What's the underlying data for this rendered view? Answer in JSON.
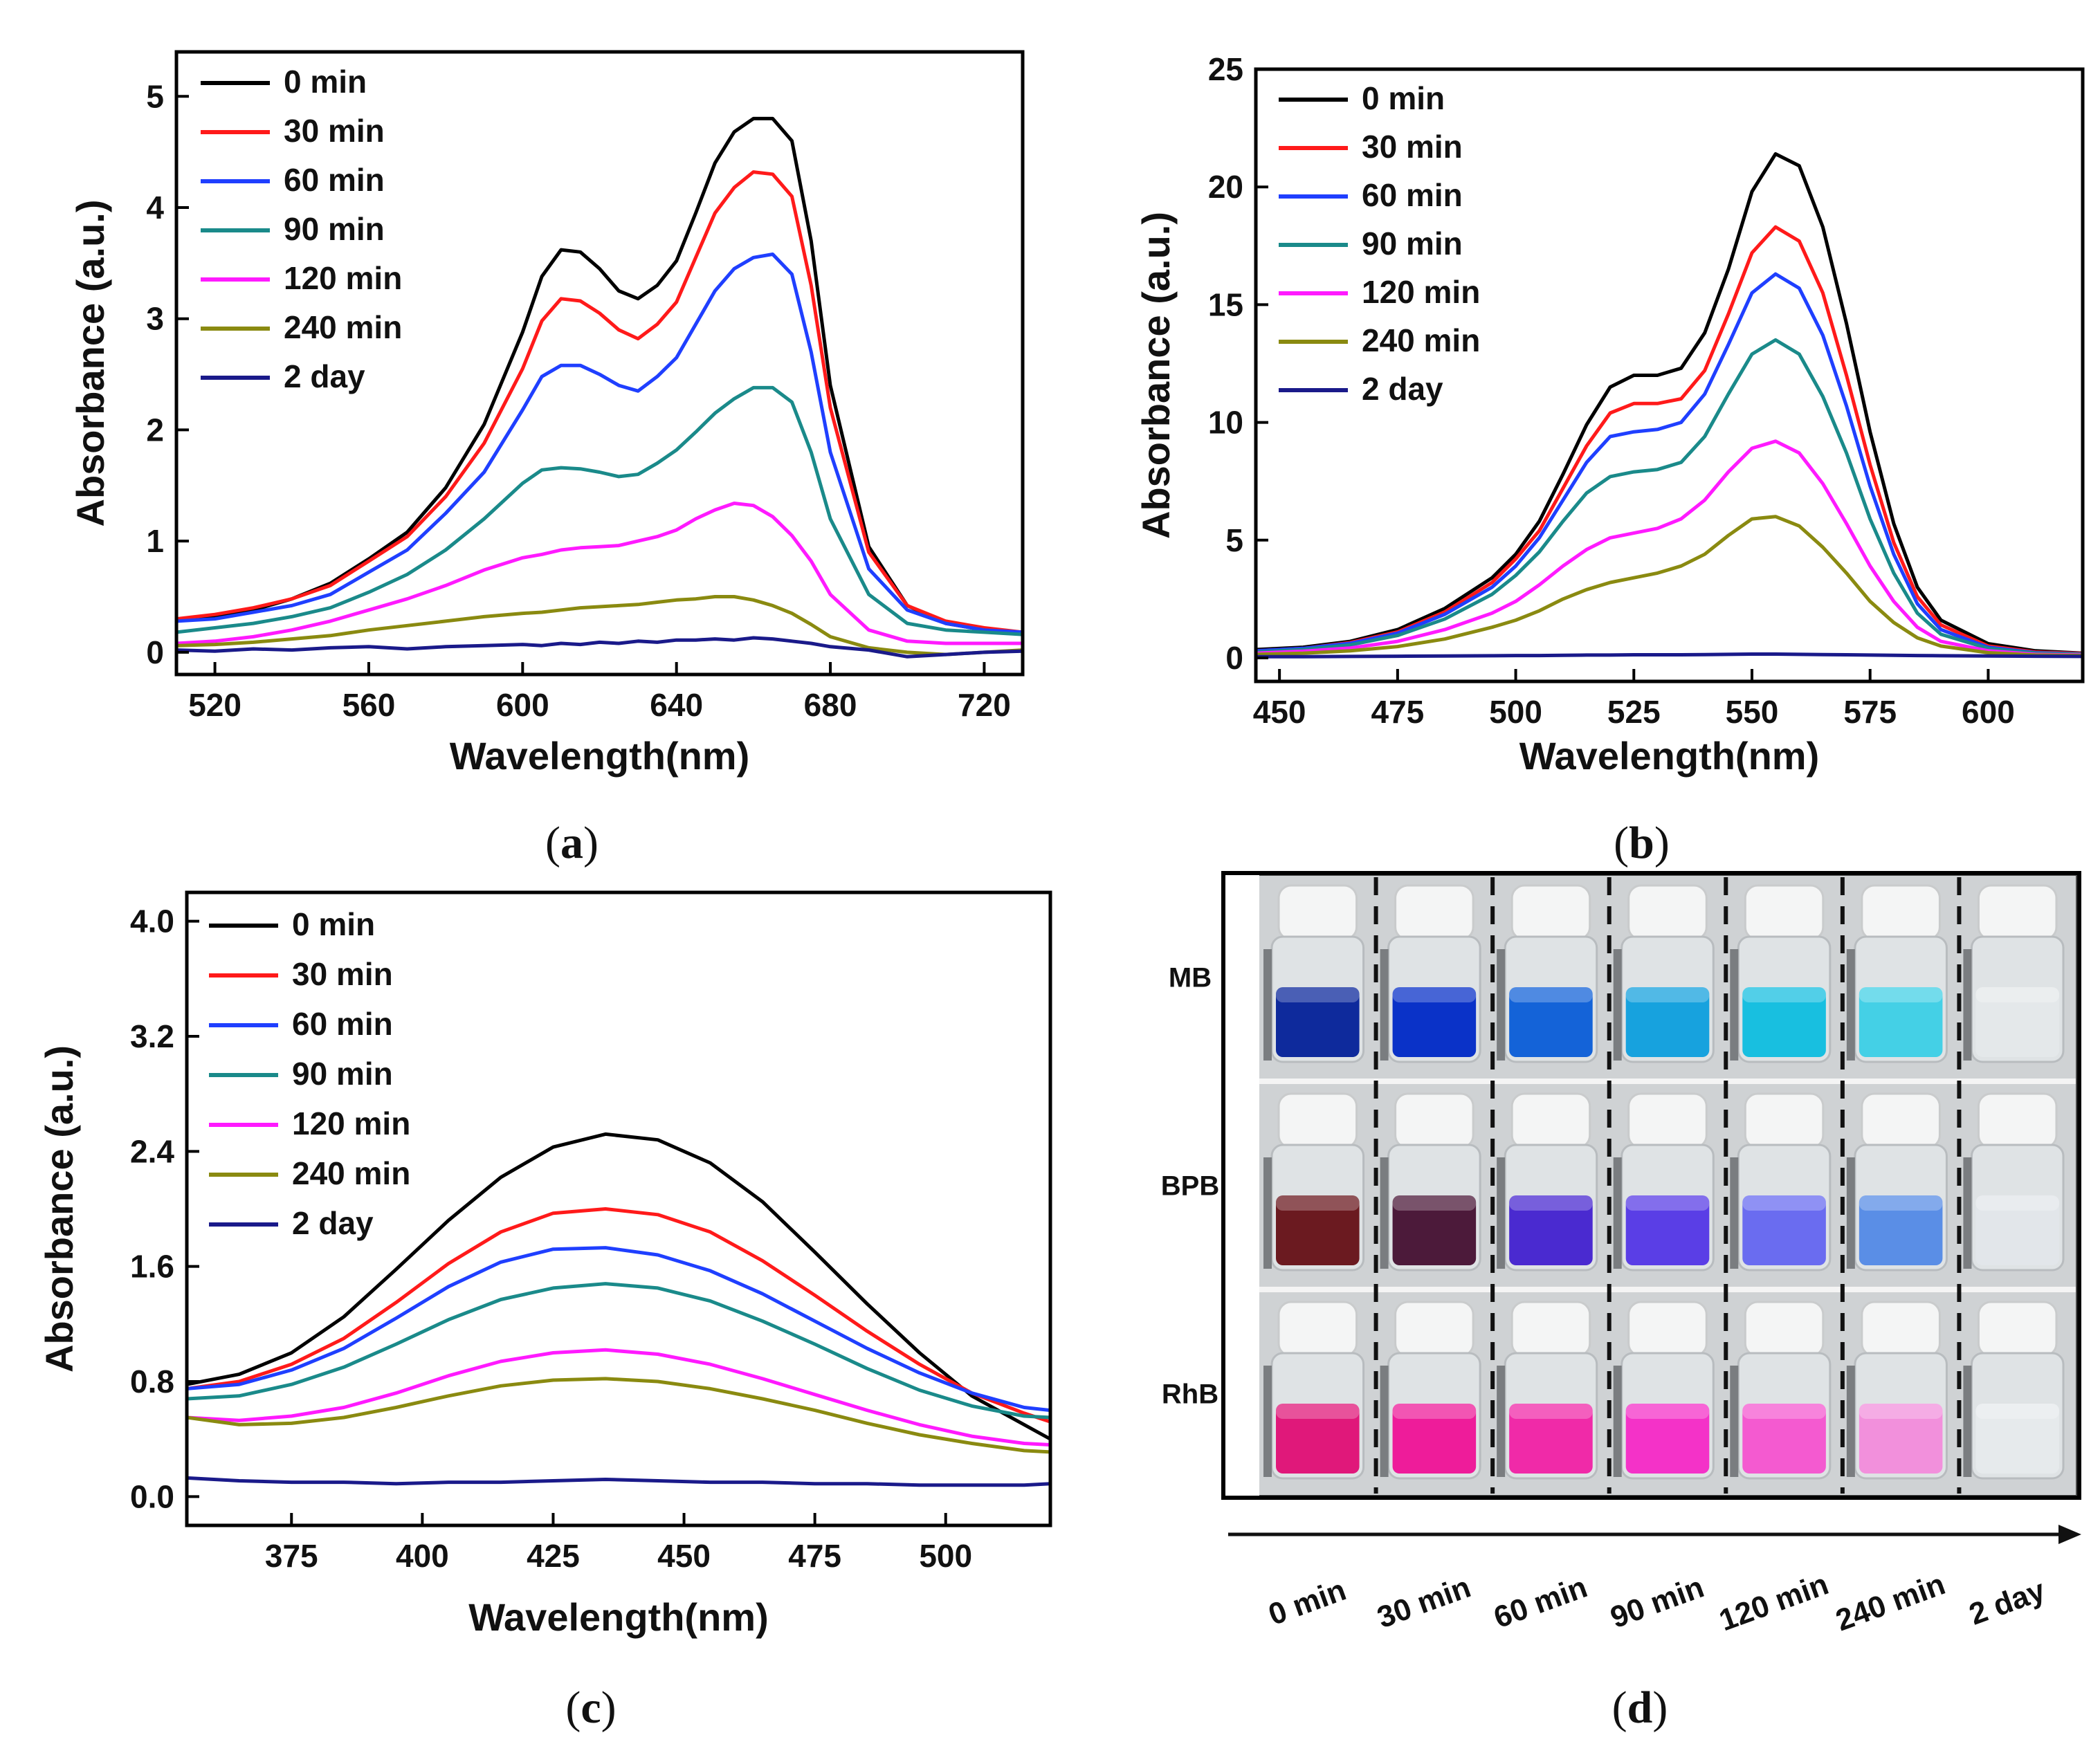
{
  "chart_data": [
    {
      "id": "a",
      "type": "line",
      "caption_letter": "a",
      "xlabel": "Wavelength(nm)",
      "ylabel": "Absorbance (a.u.)",
      "xlim": [
        510,
        730
      ],
      "ylim": [
        -0.2,
        5.4
      ],
      "xticks": [
        520,
        560,
        600,
        640,
        680,
        720
      ],
      "yticks": [
        0,
        1,
        2,
        3,
        4,
        5
      ],
      "tick_labels_x": [
        "520",
        "560",
        "600",
        "640",
        "680",
        "720"
      ],
      "tick_labels_y": [
        "0",
        "1",
        "2",
        "3",
        "4",
        "5"
      ],
      "legend_position": "top-left",
      "x": [
        510,
        520,
        530,
        540,
        550,
        560,
        570,
        580,
        590,
        600,
        605,
        610,
        615,
        620,
        625,
        630,
        635,
        640,
        645,
        650,
        655,
        660,
        665,
        670,
        675,
        680,
        690,
        700,
        710,
        720,
        730
      ],
      "series": [
        {
          "name": "0 min",
          "color": "#000000",
          "values": [
            0.28,
            0.32,
            0.38,
            0.48,
            0.62,
            0.84,
            1.08,
            1.48,
            2.05,
            2.88,
            3.38,
            3.62,
            3.6,
            3.45,
            3.25,
            3.18,
            3.3,
            3.52,
            3.95,
            4.4,
            4.68,
            4.8,
            4.8,
            4.6,
            3.7,
            2.4,
            0.95,
            0.42,
            0.26,
            0.2,
            0.16
          ]
        },
        {
          "name": "30 min",
          "color": "#ff1a1a",
          "values": [
            0.3,
            0.34,
            0.4,
            0.48,
            0.6,
            0.82,
            1.04,
            1.4,
            1.88,
            2.55,
            2.98,
            3.18,
            3.16,
            3.05,
            2.9,
            2.82,
            2.95,
            3.15,
            3.55,
            3.95,
            4.18,
            4.32,
            4.3,
            4.1,
            3.3,
            2.2,
            0.9,
            0.42,
            0.28,
            0.22,
            0.18
          ]
        },
        {
          "name": "60 min",
          "color": "#1f3fff",
          "values": [
            0.28,
            0.3,
            0.36,
            0.42,
            0.52,
            0.72,
            0.92,
            1.25,
            1.62,
            2.18,
            2.48,
            2.58,
            2.58,
            2.5,
            2.4,
            2.35,
            2.48,
            2.65,
            2.95,
            3.25,
            3.45,
            3.55,
            3.58,
            3.4,
            2.7,
            1.8,
            0.75,
            0.38,
            0.26,
            0.2,
            0.18
          ]
        },
        {
          "name": "90 min",
          "color": "#1a8a8a",
          "values": [
            0.18,
            0.22,
            0.26,
            0.32,
            0.4,
            0.54,
            0.7,
            0.92,
            1.2,
            1.52,
            1.64,
            1.66,
            1.65,
            1.62,
            1.58,
            1.6,
            1.7,
            1.82,
            1.98,
            2.15,
            2.28,
            2.38,
            2.38,
            2.25,
            1.8,
            1.2,
            0.52,
            0.26,
            0.2,
            0.18,
            0.16
          ]
        },
        {
          "name": "120 min",
          "color": "#ff1aff",
          "values": [
            0.08,
            0.1,
            0.14,
            0.2,
            0.28,
            0.38,
            0.48,
            0.6,
            0.74,
            0.85,
            0.88,
            0.92,
            0.94,
            0.95,
            0.96,
            1.0,
            1.04,
            1.1,
            1.2,
            1.28,
            1.34,
            1.32,
            1.22,
            1.05,
            0.82,
            0.52,
            0.2,
            0.1,
            0.08,
            0.08,
            0.08
          ]
        },
        {
          "name": "240 min",
          "color": "#8a8a10",
          "values": [
            0.06,
            0.07,
            0.09,
            0.12,
            0.15,
            0.2,
            0.24,
            0.28,
            0.32,
            0.35,
            0.36,
            0.38,
            0.4,
            0.41,
            0.42,
            0.43,
            0.45,
            0.47,
            0.48,
            0.5,
            0.5,
            0.47,
            0.42,
            0.35,
            0.25,
            0.14,
            0.04,
            0.0,
            -0.02,
            0.0,
            0.02
          ]
        },
        {
          "name": "2 day",
          "color": "#1a1a8a",
          "values": [
            0.02,
            0.01,
            0.03,
            0.02,
            0.04,
            0.05,
            0.03,
            0.05,
            0.06,
            0.07,
            0.06,
            0.08,
            0.07,
            0.09,
            0.08,
            0.1,
            0.09,
            0.11,
            0.11,
            0.12,
            0.11,
            0.13,
            0.12,
            0.1,
            0.08,
            0.05,
            0.02,
            -0.04,
            -0.02,
            0.0,
            0.01
          ]
        }
      ]
    },
    {
      "id": "b",
      "type": "line",
      "caption_letter": "b",
      "xlabel": "Wavelength(nm)",
      "ylabel": "Absorbance (a.u.)",
      "xlim": [
        445,
        620
      ],
      "ylim": [
        -1,
        25
      ],
      "xticks": [
        450,
        475,
        500,
        525,
        550,
        575,
        600
      ],
      "yticks": [
        0,
        5,
        10,
        15,
        20,
        25
      ],
      "tick_labels_x": [
        "450",
        "475",
        "500",
        "525",
        "550",
        "575",
        "600"
      ],
      "tick_labels_y": [
        "0",
        "5",
        "10",
        "15",
        "20",
        "25"
      ],
      "legend_position": "top-left",
      "x": [
        445,
        455,
        465,
        475,
        485,
        495,
        500,
        505,
        510,
        515,
        520,
        525,
        530,
        535,
        540,
        545,
        550,
        555,
        560,
        565,
        570,
        575,
        580,
        585,
        590,
        600,
        610,
        620
      ],
      "series": [
        {
          "name": "0 min",
          "color": "#000000",
          "values": [
            0.35,
            0.45,
            0.7,
            1.2,
            2.1,
            3.4,
            4.4,
            5.8,
            7.8,
            9.9,
            11.5,
            12.0,
            12.0,
            12.3,
            13.8,
            16.5,
            19.8,
            21.4,
            20.9,
            18.3,
            14.2,
            9.6,
            5.7,
            3.0,
            1.6,
            0.6,
            0.3,
            0.2
          ]
        },
        {
          "name": "30 min",
          "color": "#ff1a1a",
          "values": [
            0.3,
            0.4,
            0.65,
            1.1,
            1.95,
            3.2,
            4.2,
            5.4,
            7.2,
            9.0,
            10.4,
            10.8,
            10.8,
            11.0,
            12.2,
            14.6,
            17.2,
            18.3,
            17.7,
            15.5,
            12.0,
            8.2,
            4.9,
            2.6,
            1.4,
            0.5,
            0.25,
            0.18
          ]
        },
        {
          "name": "60 min",
          "color": "#1f3fff",
          "values": [
            0.3,
            0.4,
            0.62,
            1.05,
            1.85,
            3.0,
            3.9,
            5.1,
            6.7,
            8.3,
            9.4,
            9.6,
            9.7,
            10.0,
            11.2,
            13.3,
            15.5,
            16.3,
            15.7,
            13.7,
            10.7,
            7.3,
            4.4,
            2.3,
            1.2,
            0.45,
            0.22,
            0.16
          ]
        },
        {
          "name": "90 min",
          "color": "#1a8a8a",
          "values": [
            0.25,
            0.35,
            0.55,
            0.95,
            1.65,
            2.7,
            3.5,
            4.5,
            5.8,
            7.0,
            7.7,
            7.9,
            8.0,
            8.3,
            9.4,
            11.2,
            12.9,
            13.5,
            12.9,
            11.1,
            8.7,
            5.9,
            3.6,
            1.9,
            1.0,
            0.4,
            0.2,
            0.15
          ]
        },
        {
          "name": "120 min",
          "color": "#ff1aff",
          "values": [
            0.2,
            0.28,
            0.42,
            0.7,
            1.2,
            1.9,
            2.4,
            3.1,
            3.9,
            4.6,
            5.1,
            5.3,
            5.5,
            5.9,
            6.7,
            7.9,
            8.9,
            9.2,
            8.7,
            7.4,
            5.7,
            3.9,
            2.4,
            1.3,
            0.7,
            0.3,
            0.15,
            0.12
          ]
        },
        {
          "name": "240 min",
          "color": "#8a8a10",
          "values": [
            0.15,
            0.2,
            0.3,
            0.48,
            0.8,
            1.3,
            1.6,
            2.0,
            2.5,
            2.9,
            3.2,
            3.4,
            3.6,
            3.9,
            4.4,
            5.2,
            5.9,
            6.0,
            5.6,
            4.7,
            3.6,
            2.4,
            1.5,
            0.85,
            0.5,
            0.22,
            0.12,
            0.1
          ]
        },
        {
          "name": "2 day",
          "color": "#1a1a8a",
          "values": [
            0.05,
            0.05,
            0.06,
            0.07,
            0.08,
            0.09,
            0.1,
            0.1,
            0.11,
            0.12,
            0.12,
            0.13,
            0.13,
            0.13,
            0.14,
            0.15,
            0.16,
            0.16,
            0.15,
            0.14,
            0.13,
            0.12,
            0.11,
            0.1,
            0.09,
            0.08,
            0.07,
            0.06
          ]
        }
      ]
    },
    {
      "id": "c",
      "type": "line",
      "caption_letter": "c",
      "xlabel": "Wavelength(nm)",
      "ylabel": "Absorbance (a.u.)",
      "xlim": [
        355,
        520
      ],
      "ylim": [
        -0.2,
        4.2
      ],
      "xticks": [
        375,
        400,
        425,
        450,
        475,
        500
      ],
      "yticks": [
        0.0,
        0.8,
        1.6,
        2.4,
        3.2,
        4.0
      ],
      "tick_labels_x": [
        "375",
        "400",
        "425",
        "450",
        "475",
        "500"
      ],
      "tick_labels_y": [
        "0.0",
        "0.8",
        "1.6",
        "2.4",
        "3.2",
        "4.0"
      ],
      "legend_position": "top-left",
      "x": [
        355,
        365,
        375,
        385,
        395,
        405,
        415,
        425,
        435,
        445,
        455,
        465,
        475,
        485,
        495,
        505,
        515,
        520
      ],
      "series": [
        {
          "name": "0 min",
          "color": "#000000",
          "values": [
            0.78,
            0.85,
            1.0,
            1.25,
            1.58,
            1.92,
            2.22,
            2.43,
            2.52,
            2.48,
            2.32,
            2.05,
            1.7,
            1.34,
            1.0,
            0.7,
            0.5,
            0.4
          ]
        },
        {
          "name": "30 min",
          "color": "#ff1a1a",
          "values": [
            0.75,
            0.8,
            0.92,
            1.1,
            1.35,
            1.62,
            1.84,
            1.97,
            2.0,
            1.96,
            1.84,
            1.64,
            1.4,
            1.15,
            0.92,
            0.72,
            0.58,
            0.52
          ]
        },
        {
          "name": "60 min",
          "color": "#1f3fff",
          "values": [
            0.75,
            0.78,
            0.88,
            1.03,
            1.24,
            1.46,
            1.63,
            1.72,
            1.73,
            1.68,
            1.57,
            1.41,
            1.22,
            1.03,
            0.86,
            0.72,
            0.62,
            0.6
          ]
        },
        {
          "name": "90 min",
          "color": "#1a8a8a",
          "values": [
            0.68,
            0.7,
            0.78,
            0.9,
            1.06,
            1.23,
            1.37,
            1.45,
            1.48,
            1.45,
            1.36,
            1.22,
            1.06,
            0.89,
            0.74,
            0.63,
            0.56,
            0.55
          ]
        },
        {
          "name": "120 min",
          "color": "#ff1aff",
          "values": [
            0.55,
            0.53,
            0.56,
            0.62,
            0.72,
            0.84,
            0.94,
            1.0,
            1.02,
            0.99,
            0.92,
            0.82,
            0.71,
            0.6,
            0.5,
            0.42,
            0.37,
            0.36
          ]
        },
        {
          "name": "240 min",
          "color": "#8a8a10",
          "values": [
            0.55,
            0.5,
            0.51,
            0.55,
            0.62,
            0.7,
            0.77,
            0.81,
            0.82,
            0.8,
            0.75,
            0.68,
            0.6,
            0.51,
            0.43,
            0.37,
            0.32,
            0.31
          ]
        },
        {
          "name": "2 day",
          "color": "#1a1a8a",
          "values": [
            0.13,
            0.11,
            0.1,
            0.1,
            0.09,
            0.1,
            0.1,
            0.11,
            0.12,
            0.11,
            0.1,
            0.1,
            0.09,
            0.09,
            0.08,
            0.08,
            0.08,
            0.09
          ]
        }
      ]
    }
  ],
  "panel_d": {
    "caption_letter": "d",
    "rows": [
      {
        "label": "MB",
        "colors": [
          "#0e2a9c",
          "#0a32c8",
          "#1463d8",
          "#17a2de",
          "#18bfe0",
          "#44d0e6",
          "#e4e8ea"
        ]
      },
      {
        "label": "BPB",
        "colors": [
          "#6b1a20",
          "#4c1a3a",
          "#4a2ad0",
          "#5a3ee6",
          "#6a6cf0",
          "#5a8ee6",
          "#e2e6ea"
        ]
      },
      {
        "label": "RhB",
        "colors": [
          "#e0187a",
          "#ee1c9a",
          "#f02aa8",
          "#f432c8",
          "#f45ad0",
          "#f290dc",
          "#e6eaec"
        ]
      }
    ],
    "time_labels": [
      "0 min",
      "30 min",
      "60 min",
      "90 min",
      "120 min",
      "240 min",
      "2 day"
    ]
  }
}
